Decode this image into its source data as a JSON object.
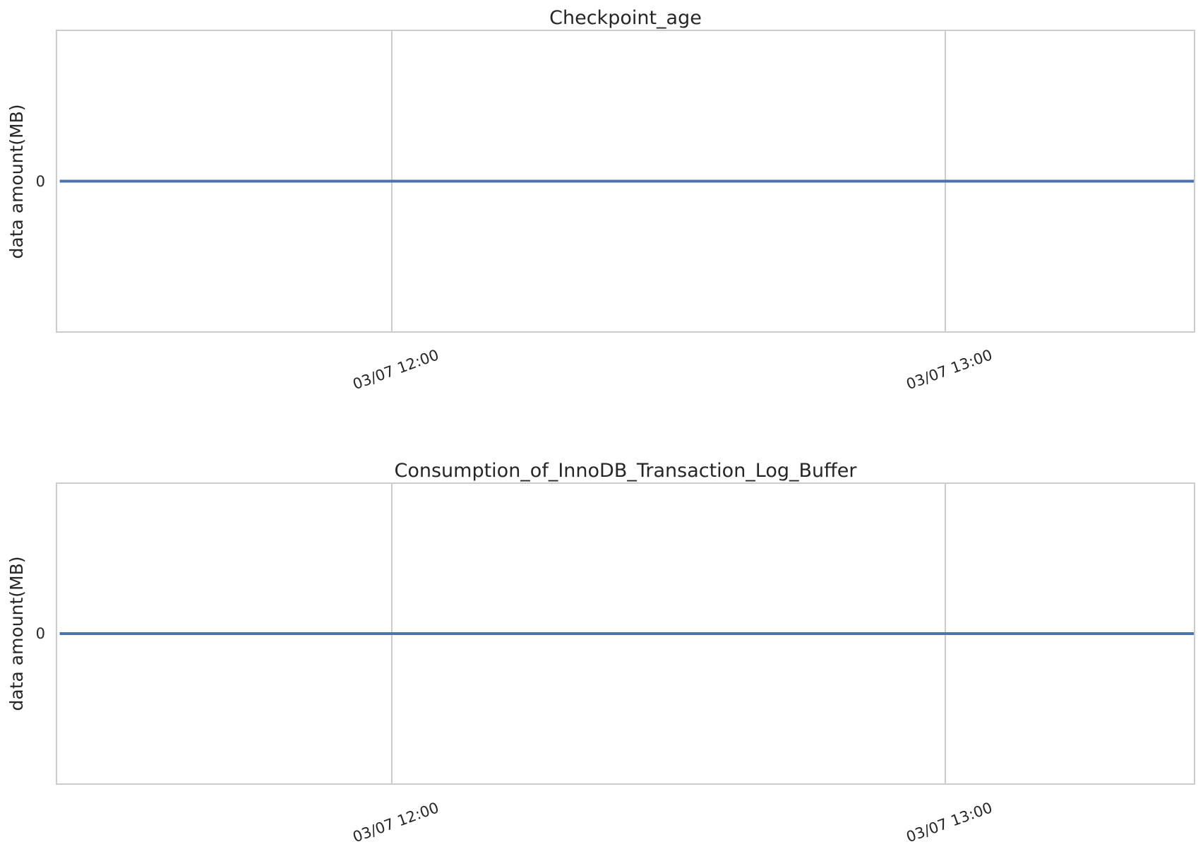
{
  "chart_data": [
    {
      "type": "line",
      "title": "Checkpoint_age",
      "xlabel": "",
      "ylabel": "data amount(MB)",
      "x_tick_labels": [
        "03/07 12:00",
        "03/07 13:00"
      ],
      "y_tick_labels": [
        "0"
      ],
      "ylim": [
        -1,
        1
      ],
      "grid": "vertical",
      "series": [
        {
          "x": [
            "03/07 11:24",
            "03/07 12:00",
            "03/07 13:00",
            "03/07 13:27"
          ],
          "values": [
            0,
            0,
            0,
            0
          ],
          "color": "#4c72b0"
        }
      ]
    },
    {
      "type": "line",
      "title": "Consumption_of_InnoDB_Transaction_Log_Buffer",
      "xlabel": "",
      "ylabel": "data amount(MB)",
      "x_tick_labels": [
        "03/07 12:00",
        "03/07 13:00"
      ],
      "y_tick_labels": [
        "0"
      ],
      "ylim": [
        -1,
        1
      ],
      "grid": "vertical",
      "series": [
        {
          "x": [
            "03/07 11:24",
            "03/07 12:00",
            "03/07 13:00",
            "03/07 13:27"
          ],
          "values": [
            0,
            0,
            0,
            0
          ],
          "color": "#4c72b0"
        }
      ]
    }
  ]
}
